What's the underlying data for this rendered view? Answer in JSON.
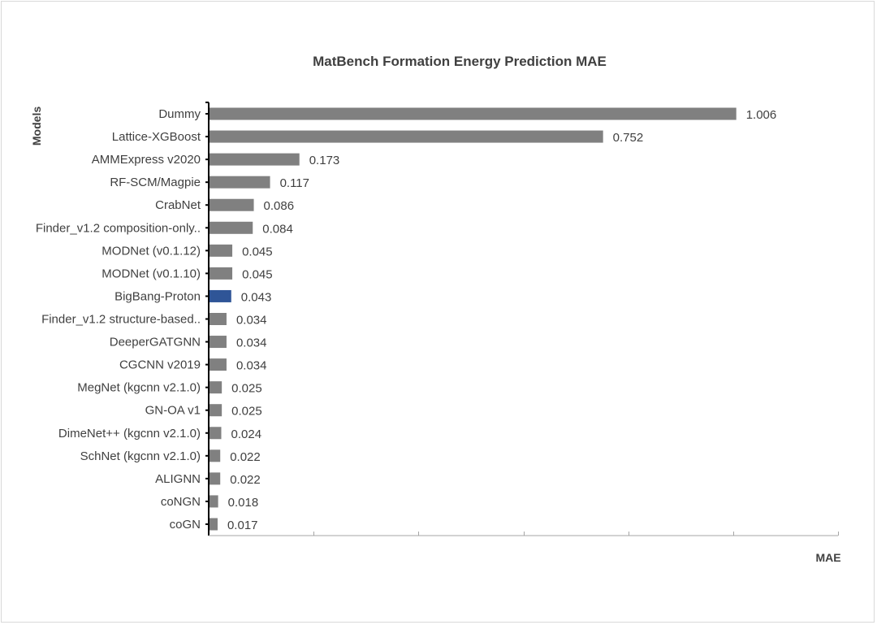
{
  "chart_data": {
    "type": "bar",
    "orientation": "horizontal",
    "title": "MatBench Formation Energy Prediction MAE",
    "xlabel": "MAE",
    "ylabel": "Models",
    "xlim": [
      0,
      1.2
    ],
    "x_ticks": [
      0,
      0.2,
      0.4,
      0.6,
      0.8,
      1.0,
      1.2
    ],
    "tick_labels_shown": false,
    "grid": false,
    "legend": "none",
    "colors": {
      "default": "#808080",
      "highlight": "#2f5597"
    },
    "highlight": "BigBang-Proton",
    "categories": [
      "Dummy",
      "Lattice-XGBoost",
      "AMMExpress v2020",
      "RF-SCM/Magpie",
      "CrabNet",
      "Finder_v1.2  composition-only..",
      "MODNet (v0.1.12)",
      "MODNet (v0.1.10)",
      "BigBang-Proton",
      "Finder_v1.2 structure-based..",
      "DeeperGATGNN",
      "CGCNN v2019",
      "MegNet (kgcnn v2.1.0)",
      "GN-OA v1",
      "DimeNet++ (kgcnn v2.1.0)",
      "SchNet (kgcnn v2.1.0)",
      "ALIGNN",
      "coNGN",
      "coGN"
    ],
    "values": [
      1.006,
      0.752,
      0.173,
      0.117,
      0.086,
      0.084,
      0.045,
      0.045,
      0.043,
      0.034,
      0.034,
      0.034,
      0.025,
      0.025,
      0.024,
      0.022,
      0.022,
      0.018,
      0.017
    ],
    "value_labels": [
      "1.006",
      "0.752",
      "0.173",
      "0.117",
      "0.086",
      "0.084",
      "0.045",
      "0.045",
      "0.043",
      "0.034",
      "0.034",
      "0.034",
      "0.025",
      "0.025",
      "0.024",
      "0.022",
      "0.022",
      "0.018",
      "0.017"
    ]
  }
}
